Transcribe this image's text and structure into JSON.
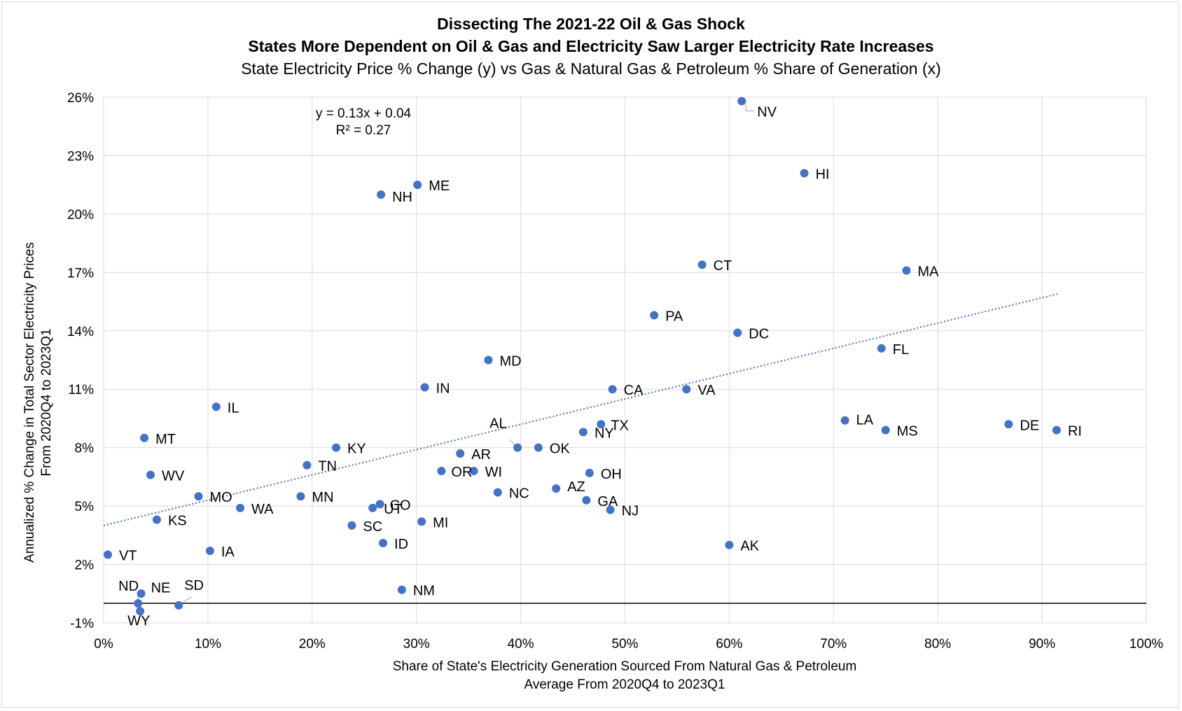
{
  "chart_data": {
    "type": "scatter",
    "title_lines": [
      "Dissecting The 2021-22 Oil & Gas Shock",
      "States More Dependent on Oil & Gas and Electricity Saw Larger Electricity Rate Increases"
    ],
    "subtitle": "State Electricity Price % Change (y) vs Gas & Natural Gas & Petroleum % Share of Generation (x)",
    "xlabel_lines": [
      "Share of State's Electricity Generation Sourced From Natural Gas & Petroleum",
      "Average From 2020Q4 to 2023Q1"
    ],
    "ylabel_lines": [
      "Annualized % Change in Total Sector Electricity Prices",
      "From 2020Q4 to 2023Q1"
    ],
    "xlim": [
      0,
      1.0
    ],
    "ylim": [
      -0.01,
      0.26
    ],
    "x_ticks": [
      0,
      0.1,
      0.2,
      0.3,
      0.4,
      0.5,
      0.6,
      0.7,
      0.8,
      0.9,
      1.0
    ],
    "x_tick_labels": [
      "0%",
      "10%",
      "20%",
      "30%",
      "40%",
      "50%",
      "60%",
      "70%",
      "80%",
      "90%",
      "100%"
    ],
    "y_ticks": [
      -0.01,
      0.02,
      0.05,
      0.08,
      0.11,
      0.14,
      0.17,
      0.2,
      0.23,
      0.26
    ],
    "y_tick_labels": [
      "-1%",
      "2%",
      "5%",
      "8%",
      "11%",
      "14%",
      "17%",
      "20%",
      "23%",
      "26%"
    ],
    "grid": "vertical and horizontal",
    "point_color": "#4472c4",
    "trendline": {
      "equation": "y = 0.13x + 0.04",
      "r_squared": "R² = 0.27",
      "slope": 0.13,
      "intercept": 0.04,
      "x_range": [
        0,
        0.915
      ],
      "style": "dotted",
      "color": "#4472c4"
    },
    "points": [
      {
        "label": "NV",
        "x": 0.612,
        "y": 0.258
      },
      {
        "label": "HI",
        "x": 0.672,
        "y": 0.221
      },
      {
        "label": "ME",
        "x": 0.301,
        "y": 0.215
      },
      {
        "label": "NH",
        "x": 0.266,
        "y": 0.21
      },
      {
        "label": "CT",
        "x": 0.574,
        "y": 0.174
      },
      {
        "label": "MA",
        "x": 0.77,
        "y": 0.171
      },
      {
        "label": "PA",
        "x": 0.528,
        "y": 0.148
      },
      {
        "label": "DC",
        "x": 0.608,
        "y": 0.139
      },
      {
        "label": "FL",
        "x": 0.746,
        "y": 0.131
      },
      {
        "label": "MD",
        "x": 0.369,
        "y": 0.125
      },
      {
        "label": "IN",
        "x": 0.308,
        "y": 0.111
      },
      {
        "label": "CA",
        "x": 0.488,
        "y": 0.11
      },
      {
        "label": "VA",
        "x": 0.559,
        "y": 0.11
      },
      {
        "label": "IL",
        "x": 0.108,
        "y": 0.101
      },
      {
        "label": "LA",
        "x": 0.711,
        "y": 0.094
      },
      {
        "label": "DE",
        "x": 0.868,
        "y": 0.092
      },
      {
        "label": "TX",
        "x": 0.477,
        "y": 0.092
      },
      {
        "label": "NY",
        "x": 0.46,
        "y": 0.088
      },
      {
        "label": "MS",
        "x": 0.75,
        "y": 0.089
      },
      {
        "label": "RI",
        "x": 0.914,
        "y": 0.089
      },
      {
        "label": "MT",
        "x": 0.039,
        "y": 0.085
      },
      {
        "label": "AL",
        "x": 0.397,
        "y": 0.08
      },
      {
        "label": "OK",
        "x": 0.417,
        "y": 0.08
      },
      {
        "label": "KY",
        "x": 0.223,
        "y": 0.08
      },
      {
        "label": "AR",
        "x": 0.342,
        "y": 0.077
      },
      {
        "label": "TN",
        "x": 0.195,
        "y": 0.071
      },
      {
        "label": "OR",
        "x": 0.324,
        "y": 0.068
      },
      {
        "label": "WI",
        "x": 0.355,
        "y": 0.068
      },
      {
        "label": "OH",
        "x": 0.466,
        "y": 0.067
      },
      {
        "label": "WV",
        "x": 0.045,
        "y": 0.066
      },
      {
        "label": "AZ",
        "x": 0.434,
        "y": 0.059
      },
      {
        "label": "NC",
        "x": 0.378,
        "y": 0.057
      },
      {
        "label": "MO",
        "x": 0.091,
        "y": 0.055
      },
      {
        "label": "MN",
        "x": 0.189,
        "y": 0.055
      },
      {
        "label": "GA",
        "x": 0.463,
        "y": 0.053
      },
      {
        "label": "CO",
        "x": 0.265,
        "y": 0.051
      },
      {
        "label": "UT",
        "x": 0.258,
        "y": 0.049
      },
      {
        "label": "WA",
        "x": 0.131,
        "y": 0.049
      },
      {
        "label": "NJ",
        "x": 0.486,
        "y": 0.048
      },
      {
        "label": "KS",
        "x": 0.051,
        "y": 0.043
      },
      {
        "label": "MI",
        "x": 0.305,
        "y": 0.042
      },
      {
        "label": "SC",
        "x": 0.238,
        "y": 0.04
      },
      {
        "label": "ID",
        "x": 0.268,
        "y": 0.031
      },
      {
        "label": "AK",
        "x": 0.6,
        "y": 0.03
      },
      {
        "label": "IA",
        "x": 0.102,
        "y": 0.027
      },
      {
        "label": "VT",
        "x": 0.004,
        "y": 0.025
      },
      {
        "label": "NM",
        "x": 0.286,
        "y": 0.007
      },
      {
        "label": "NE",
        "x": 0.036,
        "y": 0.005
      },
      {
        "label": "ND",
        "x": 0.033,
        "y": 0.0
      },
      {
        "label": "SD",
        "x": 0.072,
        "y": -0.001
      },
      {
        "label": "WY",
        "x": 0.035,
        "y": -0.004
      }
    ]
  }
}
